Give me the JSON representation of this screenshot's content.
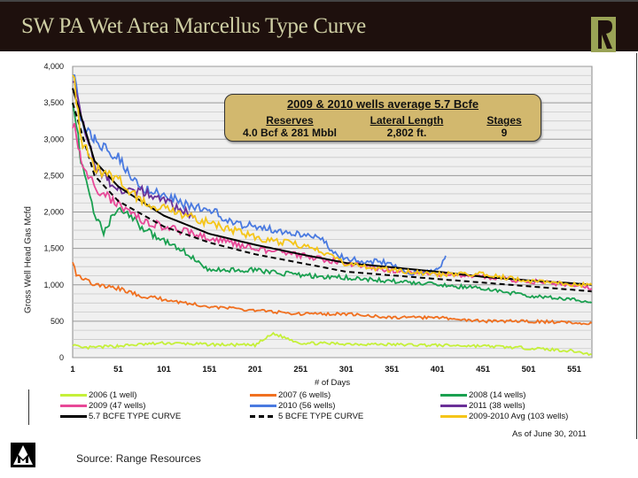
{
  "header": {
    "title": "SW PA Wet Area Marcellus Type Curve",
    "logo_text": "R"
  },
  "annotation": {
    "heading": "2009 & 2010 wells average 5.7 Bcfe",
    "columns": [
      {
        "label": "Reserves",
        "value": "4.0 Bcf & 281 Mbbl"
      },
      {
        "label": "Lateral Length",
        "value": "2,802 ft."
      },
      {
        "label": "Stages",
        "value": "9"
      }
    ]
  },
  "footer": {
    "as_of": "As of June 30, 2011",
    "source": "Source: Range Resources",
    "logo_text": "M"
  },
  "chart_data": {
    "type": "line",
    "title": "",
    "xlabel": "# of Days",
    "ylabel": "Gross Well Head Gas Mcfd",
    "xlim": [
      1,
      570
    ],
    "ylim": [
      0,
      4000
    ],
    "x_ticks": [
      1,
      51,
      101,
      151,
      201,
      251,
      301,
      351,
      401,
      451,
      501,
      551
    ],
    "y_ticks": [
      0,
      500,
      1000,
      1500,
      2000,
      2500,
      3000,
      3500,
      4000
    ],
    "y_tick_labels": [
      "0",
      "500",
      "1,000",
      "1,500",
      "2,000",
      "2,500",
      "3,000",
      "3,500",
      "4,000"
    ],
    "grid": true,
    "legend_position": "bottom",
    "series": [
      {
        "name": "2006 (1 well)",
        "color": "#c5f03a",
        "style": "solid",
        "points": [
          [
            1,
            180
          ],
          [
            10,
            130
          ],
          [
            51,
            160
          ],
          [
            101,
            200
          ],
          [
            151,
            180
          ],
          [
            201,
            170
          ],
          [
            221,
            330
          ],
          [
            251,
            200
          ],
          [
            301,
            190
          ],
          [
            351,
            180
          ],
          [
            401,
            170
          ],
          [
            451,
            160
          ],
          [
            501,
            130
          ],
          [
            551,
            90
          ],
          [
            570,
            40
          ]
        ]
      },
      {
        "name": "2007 (6 wells)",
        "color": "#f07020",
        "style": "solid",
        "points": [
          [
            1,
            1350
          ],
          [
            5,
            1150
          ],
          [
            25,
            1000
          ],
          [
            51,
            950
          ],
          [
            75,
            850
          ],
          [
            101,
            800
          ],
          [
            151,
            700
          ],
          [
            201,
            650
          ],
          [
            251,
            600
          ],
          [
            301,
            600
          ],
          [
            351,
            550
          ],
          [
            401,
            550
          ],
          [
            451,
            500
          ],
          [
            501,
            500
          ],
          [
            551,
            480
          ],
          [
            570,
            470
          ]
        ]
      },
      {
        "name": "2008 (14 wells)",
        "color": "#1aa050",
        "style": "solid",
        "points": [
          [
            1,
            3600
          ],
          [
            10,
            2700
          ],
          [
            25,
            2000
          ],
          [
            35,
            1700
          ],
          [
            51,
            2100
          ],
          [
            75,
            1800
          ],
          [
            101,
            1600
          ],
          [
            125,
            1450
          ],
          [
            151,
            1200
          ],
          [
            201,
            1200
          ],
          [
            251,
            1130
          ],
          [
            301,
            1100
          ],
          [
            351,
            1050
          ],
          [
            401,
            1000
          ],
          [
            451,
            950
          ],
          [
            501,
            850
          ],
          [
            551,
            800
          ],
          [
            570,
            750
          ]
        ]
      },
      {
        "name": "2009 (47 wells)",
        "color": "#e84898",
        "style": "solid",
        "points": [
          [
            1,
            3250
          ],
          [
            10,
            2700
          ],
          [
            25,
            2350
          ],
          [
            51,
            2100
          ],
          [
            75,
            1900
          ],
          [
            101,
            1800
          ],
          [
            151,
            1650
          ],
          [
            201,
            1500
          ],
          [
            251,
            1400
          ],
          [
            301,
            1300
          ],
          [
            351,
            1200
          ],
          [
            401,
            1150
          ],
          [
            451,
            1100
          ],
          [
            501,
            1050
          ],
          [
            551,
            1000
          ],
          [
            570,
            950
          ]
        ]
      },
      {
        "name": "2010 (56 wells)",
        "color": "#4a7ae0",
        "style": "solid",
        "points": [
          [
            1,
            4000
          ],
          [
            10,
            3200
          ],
          [
            25,
            3000
          ],
          [
            45,
            2800
          ],
          [
            51,
            2750
          ],
          [
            75,
            2350
          ],
          [
            101,
            2250
          ],
          [
            125,
            2100
          ],
          [
            151,
            2050
          ],
          [
            175,
            1850
          ],
          [
            201,
            1800
          ],
          [
            251,
            1700
          ],
          [
            275,
            1650
          ],
          [
            290,
            1400
          ],
          [
            320,
            1330
          ],
          [
            351,
            1300
          ],
          [
            370,
            1150
          ],
          [
            401,
            1200
          ],
          [
            410,
            1400
          ]
        ]
      },
      {
        "name": "2011 (38 wells)",
        "color": "#6a3098",
        "style": "solid",
        "points": [
          [
            1,
            3900
          ],
          [
            25,
            2600
          ],
          [
            40,
            2450
          ],
          [
            51,
            2300
          ],
          [
            75,
            2300
          ],
          [
            101,
            2150
          ],
          [
            135,
            1950
          ]
        ]
      },
      {
        "name": "5.7 BCFE TYPE CURVE",
        "color": "#000000",
        "style": "solid",
        "points": [
          [
            1,
            3700
          ],
          [
            25,
            2700
          ],
          [
            51,
            2350
          ],
          [
            101,
            1950
          ],
          [
            151,
            1700
          ],
          [
            201,
            1550
          ],
          [
            251,
            1420
          ],
          [
            301,
            1300
          ],
          [
            351,
            1240
          ],
          [
            401,
            1180
          ],
          [
            451,
            1110
          ],
          [
            501,
            1060
          ],
          [
            551,
            1020
          ],
          [
            570,
            1000
          ]
        ]
      },
      {
        "name": "5 BCFE TYPE CURVE",
        "color": "#000000",
        "style": "dashed",
        "points": [
          [
            1,
            3500
          ],
          [
            25,
            2500
          ],
          [
            51,
            2150
          ],
          [
            101,
            1800
          ],
          [
            151,
            1580
          ],
          [
            201,
            1420
          ],
          [
            251,
            1300
          ],
          [
            301,
            1180
          ],
          [
            351,
            1130
          ],
          [
            401,
            1080
          ],
          [
            451,
            1030
          ],
          [
            501,
            980
          ],
          [
            551,
            930
          ],
          [
            570,
            910
          ]
        ]
      },
      {
        "name": "2009-2010 Avg (103 wells)",
        "color": "#f5c518",
        "style": "solid",
        "points": [
          [
            1,
            4000
          ],
          [
            10,
            3000
          ],
          [
            25,
            2600
          ],
          [
            51,
            2450
          ],
          [
            75,
            2150
          ],
          [
            101,
            2050
          ],
          [
            125,
            1950
          ],
          [
            151,
            1850
          ],
          [
            201,
            1650
          ],
          [
            251,
            1550
          ],
          [
            275,
            1450
          ],
          [
            301,
            1280
          ],
          [
            351,
            1200
          ],
          [
            401,
            1150
          ],
          [
            451,
            1150
          ],
          [
            501,
            1050
          ],
          [
            551,
            1000
          ],
          [
            570,
            1000
          ]
        ]
      }
    ]
  }
}
